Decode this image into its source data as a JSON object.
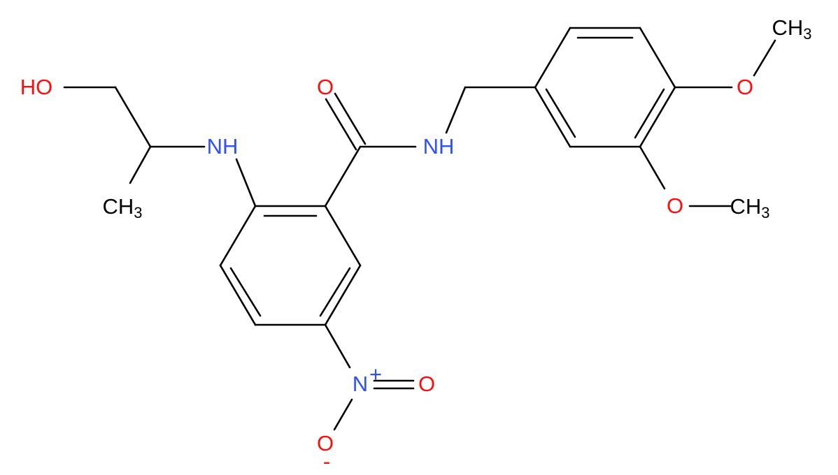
{
  "labels": [
    {
      "text": "HO"
    },
    {
      "text": "CH",
      "sub": "3"
    },
    {
      "text": "NH"
    },
    {
      "text": "O"
    },
    {
      "text": "NH"
    },
    {
      "text": "O"
    },
    {
      "text": "CH",
      "sub": "3"
    },
    {
      "text": "O"
    },
    {
      "text": "CH",
      "sub": "3"
    },
    {
      "text": "N",
      "charge": "+"
    },
    {
      "text": "O"
    },
    {
      "text": "O",
      "charge": "-"
    }
  ]
}
